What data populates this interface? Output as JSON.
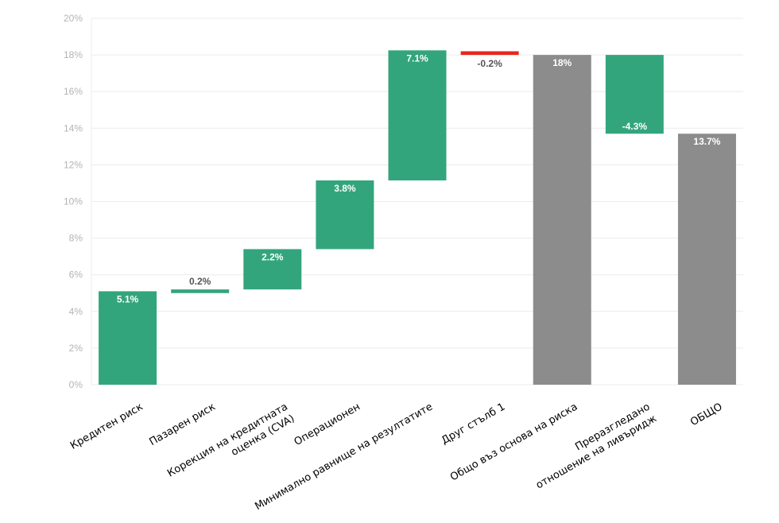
{
  "chart_data": {
    "type": "bar",
    "subtype": "waterfall",
    "title": "",
    "xlabel": "",
    "ylabel": "",
    "ylim": [
      0,
      20
    ],
    "y_ticks": [
      "0%",
      "2%",
      "4%",
      "6%",
      "8%",
      "10%",
      "12%",
      "14%",
      "16%",
      "18%",
      "20%"
    ],
    "grid": true,
    "legend": "none",
    "colors": {
      "increase": "#33a57d",
      "decrease_red": "#e8261f",
      "total": "#8c8c8c",
      "grid": "#ececec",
      "tick_text": "#b4b4b4"
    },
    "categories": [
      [
        "Кредитен риск"
      ],
      [
        "Пазарен риск"
      ],
      [
        "Корекция на кредитната",
        "оценка (CVA)"
      ],
      [
        "Операционен"
      ],
      [
        "Минимално равнище на резултатите"
      ],
      [
        "Друг стълб 1"
      ],
      [
        "Общо въз основа на риска"
      ],
      [
        "Преразгледано",
        "отношение на ливъридж"
      ],
      [
        "ОБЩО"
      ]
    ],
    "bars": [
      {
        "start": 0,
        "end": 5.1,
        "label": "5.1%",
        "color": "#33a57d",
        "label_pos": "inside"
      },
      {
        "start": 5.0,
        "end": 5.2,
        "label": "0.2%",
        "color": "#33a57d",
        "label_pos": "above"
      },
      {
        "start": 5.2,
        "end": 7.4,
        "label": "2.2%",
        "color": "#33a57d",
        "label_pos": "inside"
      },
      {
        "start": 7.4,
        "end": 11.15,
        "label": "3.8%",
        "color": "#33a57d",
        "label_pos": "inside"
      },
      {
        "start": 11.15,
        "end": 18.25,
        "label": "7.1%",
        "color": "#33a57d",
        "label_pos": "inside"
      },
      {
        "start": 18.0,
        "end": 18.2,
        "label": "-0.2%",
        "color": "#e8261f",
        "label_pos": "below"
      },
      {
        "start": 0,
        "end": 18.0,
        "label": "18%",
        "color": "#8c8c8c",
        "label_pos": "inside"
      },
      {
        "start": 13.7,
        "end": 18.0,
        "label": "-4.3%",
        "color": "#33a57d",
        "label_pos": "inside-bottom"
      },
      {
        "start": 0,
        "end": 13.7,
        "label": "13.7%",
        "color": "#8c8c8c",
        "label_pos": "inside"
      }
    ]
  }
}
